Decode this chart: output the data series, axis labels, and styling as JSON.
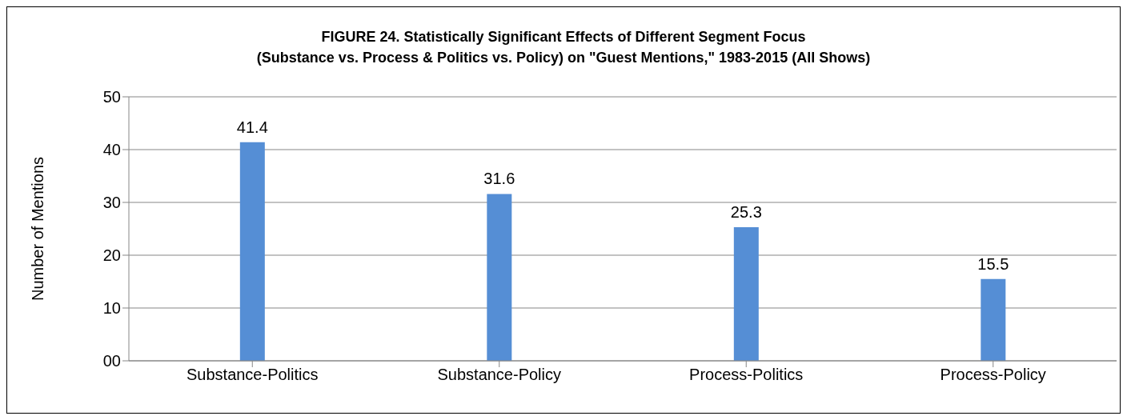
{
  "chart_data": {
    "type": "bar",
    "title": "FIGURE 24. Statistically Significant Effects of Different Segment Focus\n(Substance vs. Process & Politics vs. Policy) on \"Guest Mentions,\" 1983-2015 (All Shows)",
    "ylabel": "Number of Mentions",
    "categories": [
      "Substance-Politics",
      "Substance-Policy",
      "Process-Politics",
      "Process-Policy"
    ],
    "values": [
      41.4,
      31.6,
      25.3,
      15.5
    ],
    "color": "#558ed5",
    "ylim": [
      0,
      50
    ],
    "yticks": [
      {
        "value": 0,
        "label": "00"
      },
      10,
      20,
      30,
      40,
      50
    ],
    "grid": "y",
    "data_labels": true,
    "legend": false
  }
}
